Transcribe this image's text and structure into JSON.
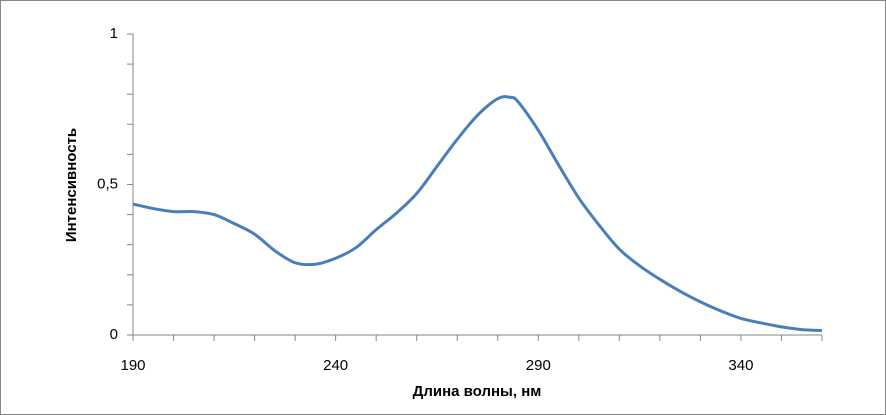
{
  "chart_data": {
    "type": "line",
    "x_label": "Длина волны, нм",
    "y_label": "Интенсивность",
    "x": [
      190,
      195,
      200,
      205,
      210,
      215,
      220,
      225,
      230,
      235,
      240,
      245,
      250,
      255,
      260,
      265,
      270,
      275,
      280,
      283,
      285,
      290,
      295,
      300,
      305,
      310,
      315,
      320,
      325,
      330,
      335,
      340,
      345,
      350,
      355,
      360
    ],
    "series": [
      {
        "name": "Интенсивность",
        "color": "#4a7ebb",
        "values": [
          0.435,
          0.42,
          0.41,
          0.41,
          0.4,
          0.37,
          0.335,
          0.28,
          0.24,
          0.235,
          0.255,
          0.29,
          0.35,
          0.405,
          0.47,
          0.56,
          0.65,
          0.73,
          0.785,
          0.79,
          0.775,
          0.68,
          0.565,
          0.455,
          0.365,
          0.285,
          0.23,
          0.185,
          0.145,
          0.11,
          0.08,
          0.055,
          0.04,
          0.027,
          0.018,
          0.015
        ]
      }
    ],
    "xlim": [
      190,
      360
    ],
    "xticks": [
      190,
      240,
      290,
      340
    ],
    "xminor_ticks": [
      200,
      210,
      220,
      230,
      250,
      260,
      270,
      280,
      300,
      310,
      320,
      330,
      350,
      360
    ],
    "ylim": [
      0,
      1
    ],
    "yticks": [
      0,
      {
        "value": 0.5,
        "label": "0,5"
      },
      1
    ],
    "yminor_ticks": [
      0.1,
      0.2,
      0.3,
      0.4,
      0.6,
      0.7,
      0.8,
      0.9
    ],
    "grid": false,
    "legend": false
  }
}
